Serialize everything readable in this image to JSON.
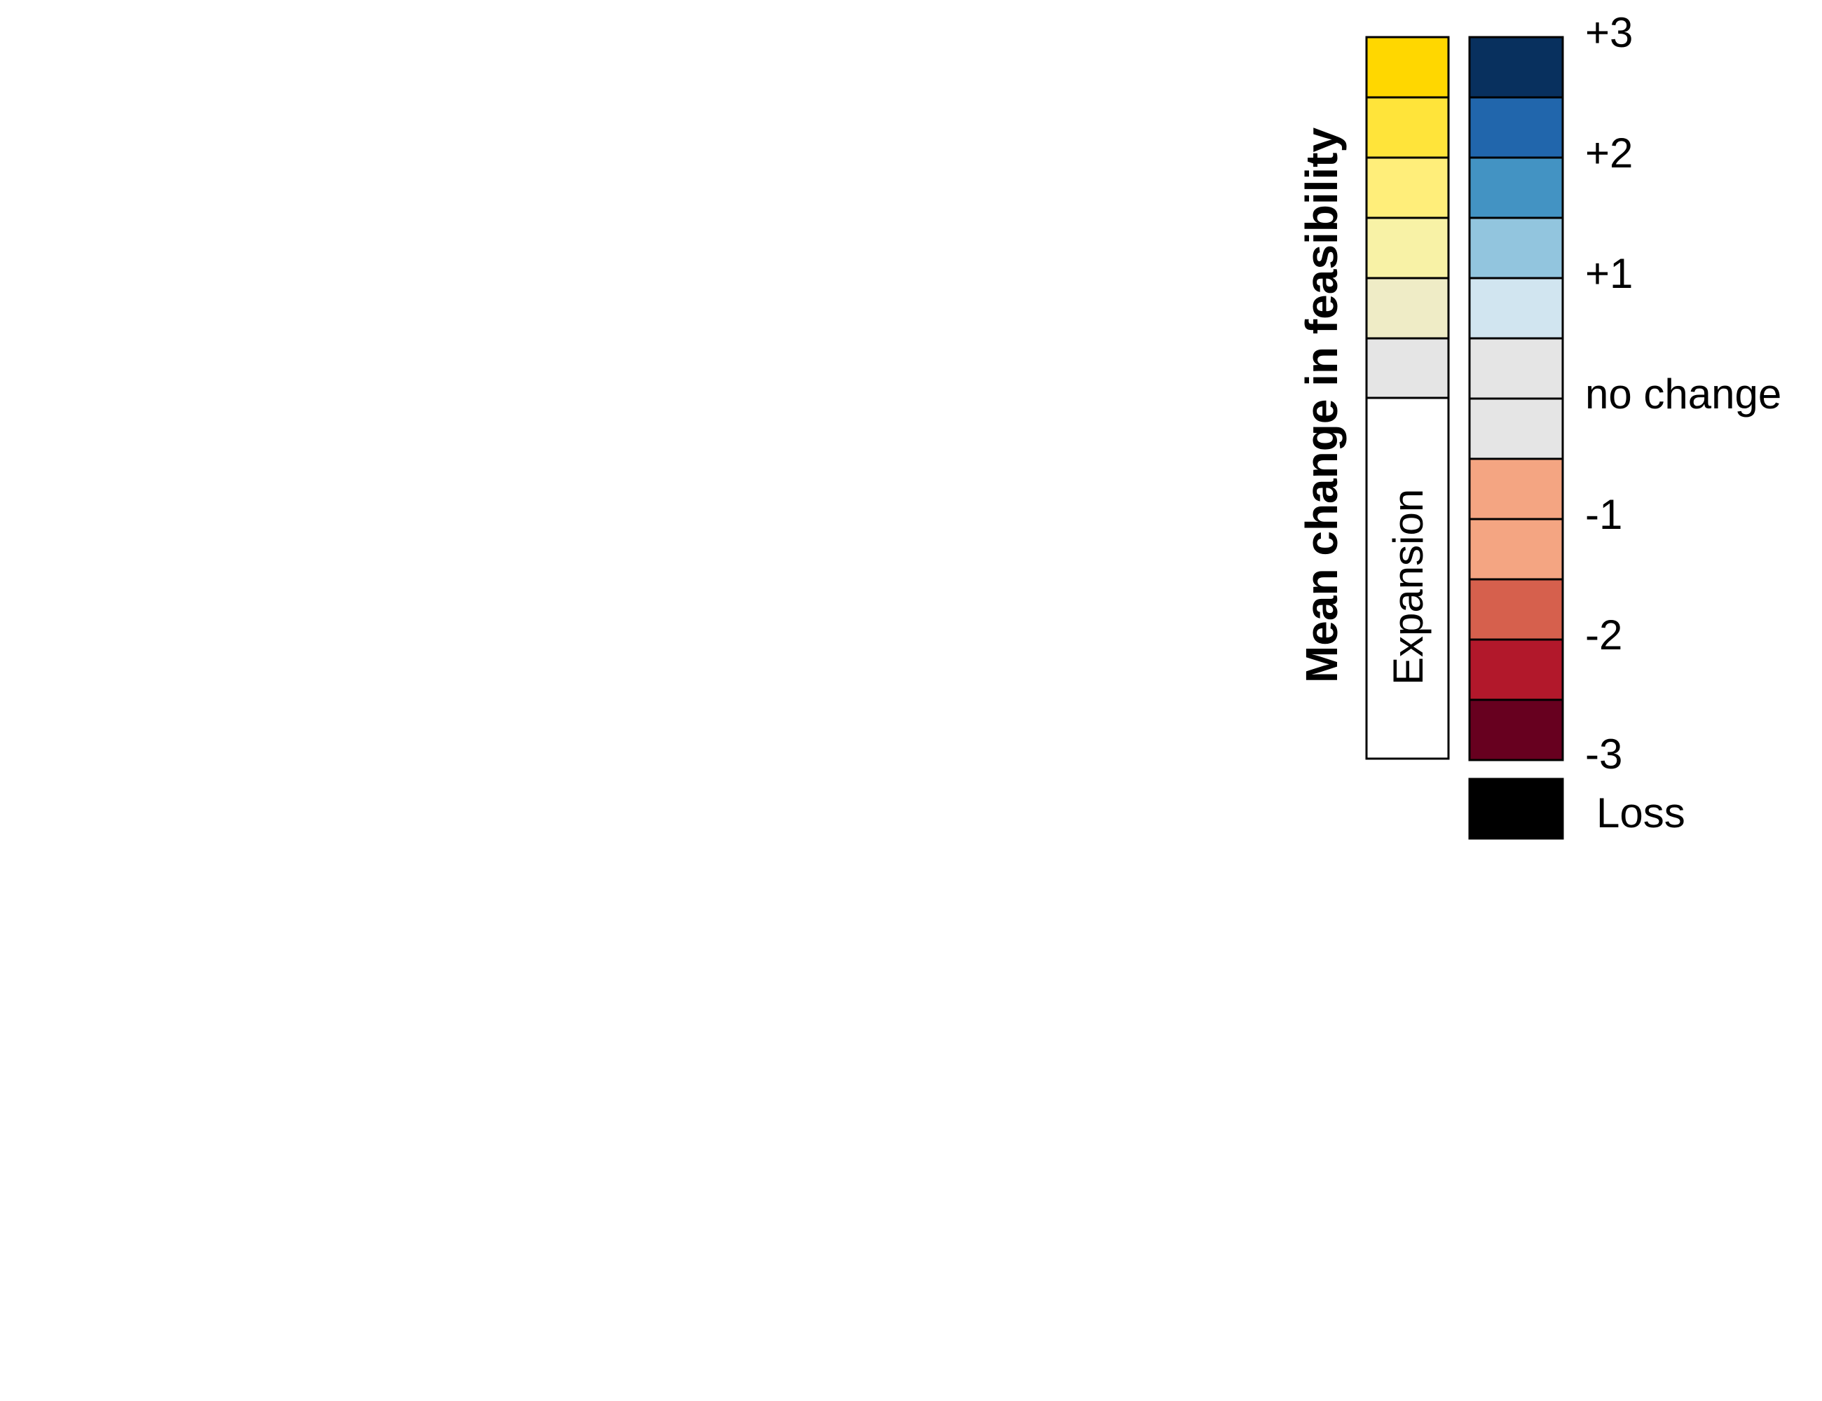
{
  "legend": {
    "title": "Mean change in feasibility",
    "expansion_label": "Expansion",
    "expansion_colors": [
      "#FFD700",
      "#FFE43A",
      "#FFEE7A",
      "#F8F2A6",
      "#EFECC6",
      "#E5E5E5"
    ],
    "change_colors": [
      "#08305E",
      "#2166AC",
      "#4393C3",
      "#92C5DE",
      "#D1E5F0",
      "#E5E5E5",
      "#E5E5E5",
      "#F4A582",
      "#F4A582",
      "#D6604D",
      "#B2182B",
      "#67001F"
    ],
    "tick_labels": [
      "+3",
      "+2",
      "+1",
      "no change",
      "-1",
      "-2",
      "-3"
    ],
    "loss_label": "Loss",
    "loss_color": "#000000"
  }
}
